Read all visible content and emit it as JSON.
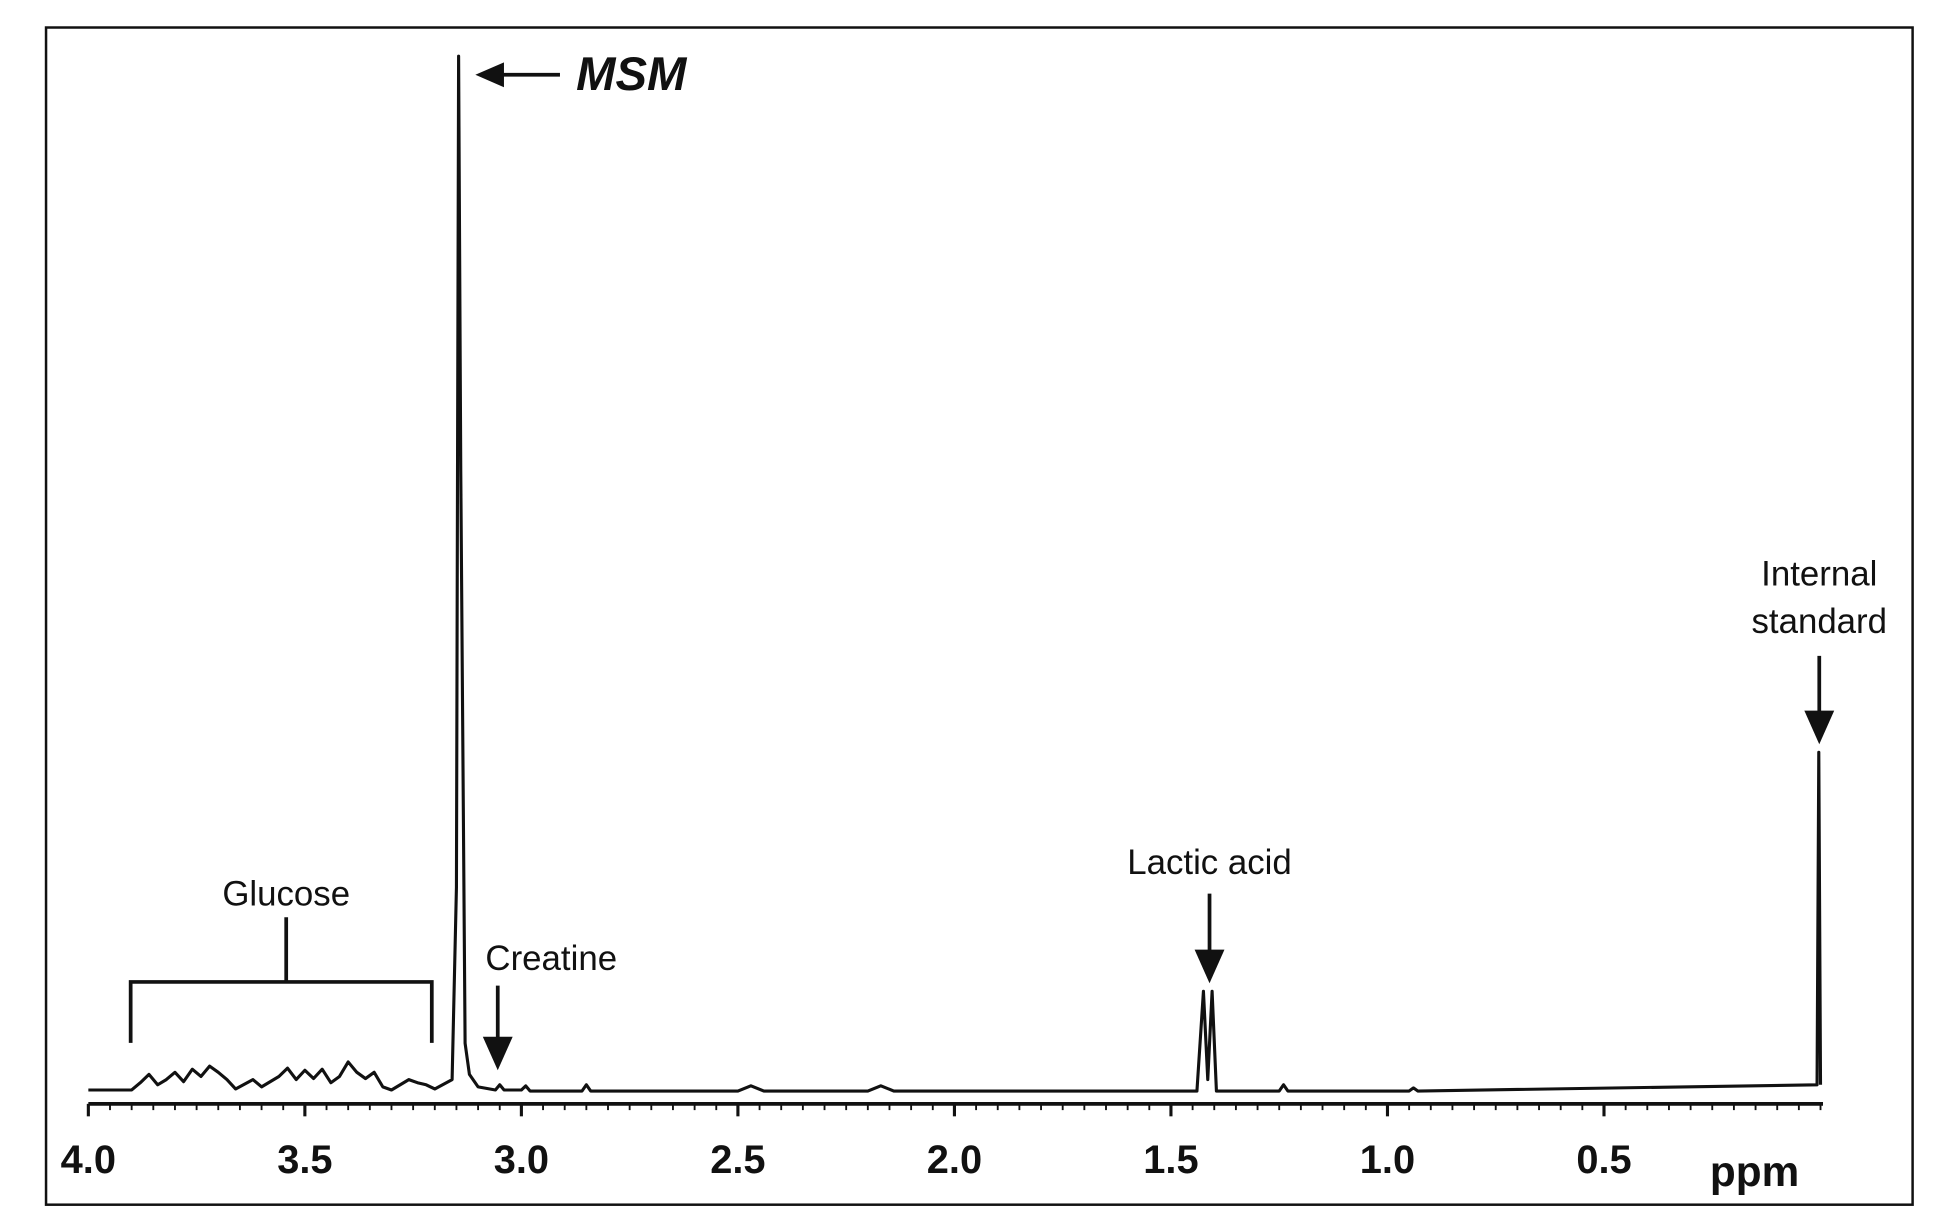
{
  "chart_data": {
    "type": "line",
    "x_label": "ppm",
    "xlim": [
      4,
      0
    ],
    "ylim": [
      0,
      100
    ],
    "xticks": [
      {
        "value": 4,
        "label": "4.0"
      },
      3.5,
      {
        "value": 3,
        "label": "3.0"
      },
      2.5,
      {
        "value": 2,
        "label": "2.0"
      },
      1.5,
      {
        "value": 1,
        "label": "1.0"
      },
      0.5
    ],
    "annotations": {
      "msm": "MSM",
      "glucose": "Glucose",
      "creatine": "Creatine",
      "lactic_acid": "Lactic acid",
      "internal_standard": [
        "Internal",
        "standard"
      ]
    },
    "series": [
      {
        "color": "#111111",
        "x": [
          4.0,
          3.9,
          3.88,
          3.86,
          3.84,
          3.82,
          3.8,
          3.78,
          3.76,
          3.74,
          3.72,
          3.7,
          3.68,
          3.66,
          3.62,
          3.6,
          3.56,
          3.54,
          3.52,
          3.5,
          3.48,
          3.46,
          3.44,
          3.42,
          3.4,
          3.38,
          3.36,
          3.34,
          3.32,
          3.3,
          3.26,
          3.24,
          3.22,
          3.2,
          3.16,
          3.15,
          3.145,
          3.14,
          3.13,
          3.12,
          3.1,
          3.06,
          3.05,
          3.04,
          3.0,
          2.99,
          2.98,
          2.86,
          2.85,
          2.84,
          2.5,
          2.47,
          2.44,
          2.2,
          2.17,
          2.14,
          1.44,
          1.425,
          1.415,
          1.405,
          1.395,
          1.25,
          1.24,
          1.23,
          0.95,
          0.94,
          0.93,
          0.008,
          0.004,
          0.0
        ],
        "values": [
          0.5,
          0.5,
          1.2,
          2,
          1,
          1.5,
          2.2,
          1.3,
          2.5,
          1.8,
          2.8,
          2.2,
          1.5,
          0.6,
          1.5,
          0.8,
          1.8,
          2.6,
          1.5,
          2.4,
          1.6,
          2.5,
          1.2,
          1.8,
          3.2,
          2.2,
          1.6,
          2.2,
          0.8,
          0.5,
          1.5,
          1.2,
          1.0,
          0.6,
          1.5,
          20,
          100,
          60,
          5,
          2,
          0.8,
          0.5,
          1,
          0.5,
          0.5,
          0.9,
          0.4,
          0.4,
          1,
          0.4,
          0.4,
          0.9,
          0.4,
          0.4,
          0.9,
          0.4,
          0.4,
          10,
          1.5,
          10,
          0.4,
          0.4,
          1,
          0.4,
          0.4,
          0.7,
          0.4,
          1,
          33,
          1
        ]
      }
    ]
  }
}
